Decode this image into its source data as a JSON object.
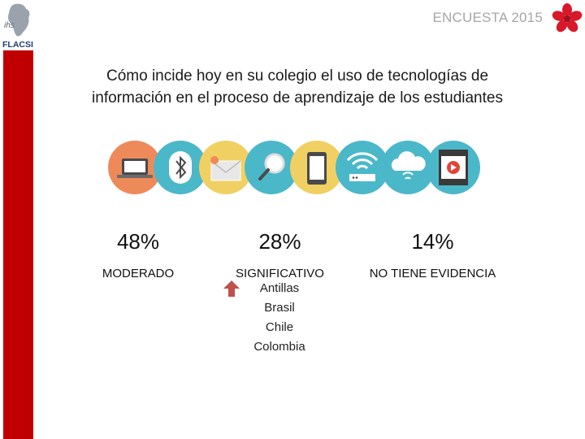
{
  "logo": {
    "line1": "ihs",
    "line2": "FLACSI"
  },
  "header": {
    "title": "ENCUESTA 2015"
  },
  "question": {
    "line1": "Cómo incide hoy en su colegio el uso de tecnologías de",
    "line2": "información en el proceso de aprendizaje de los estudiantes"
  },
  "icons": [
    "laptop-icon",
    "bluetooth-icon",
    "email-icon",
    "magnifier-icon",
    "smartphone-icon",
    "wifi-router-icon",
    "cloud-icon",
    "video-player-icon"
  ],
  "colors": {
    "accent": "#c00000",
    "orange": "#ee8a5a",
    "teal": "#4bb8c9",
    "yellow": "#f1d063",
    "arrow": "#c0504d"
  },
  "stats": [
    {
      "percent": "48%",
      "label": "MODERADO"
    },
    {
      "percent": "28%",
      "label": "SIGNIFICATIVO",
      "trend": "up",
      "countries": [
        "Antillas",
        "Brasil",
        "Chile",
        "Colombia"
      ]
    },
    {
      "percent": "14%",
      "label": "NO TIENE EVIDENCIA"
    }
  ]
}
